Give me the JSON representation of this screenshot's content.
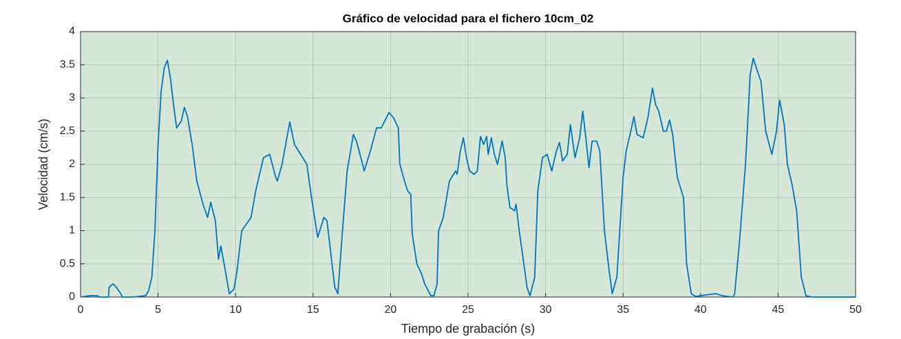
{
  "chart_data": {
    "type": "line",
    "title": "Gráfico de velocidad para el fichero 10cm_02",
    "xlabel": "Tiempo de grabación (s)",
    "ylabel": "Velocidad (cm/s)",
    "xlim": [
      0,
      50
    ],
    "ylim": [
      0,
      4
    ],
    "xticks": [
      0,
      5,
      10,
      15,
      20,
      25,
      30,
      35,
      40,
      45,
      50
    ],
    "yticks": [
      0,
      0.5,
      1,
      1.5,
      2,
      2.5,
      3,
      3.5,
      4
    ],
    "grid": true,
    "background": "#d5e8d7",
    "x": [
      0,
      0.6,
      1.1,
      1.2,
      1.8,
      1.85,
      2.1,
      2.3,
      2.6,
      2.7,
      3.4,
      4.2,
      4.4,
      4.6,
      4.8,
      5.0,
      5.2,
      5.4,
      5.6,
      5.8,
      6.0,
      6.2,
      6.5,
      6.7,
      6.9,
      7.2,
      7.5,
      7.9,
      8.2,
      8.4,
      8.7,
      8.9,
      9.05,
      9.3,
      9.6,
      9.9,
      10.1,
      10.4,
      10.7,
      11.0,
      11.3,
      11.8,
      12.2,
      12.6,
      12.7,
      13.0,
      13.5,
      13.8,
      14.2,
      14.6,
      14.9,
      15.3,
      15.7,
      15.9,
      16.2,
      16.4,
      16.6,
      16.9,
      17.2,
      17.6,
      17.8,
      18.2,
      18.3,
      18.7,
      19.1,
      19.4,
      19.9,
      20.2,
      20.5,
      20.6,
      20.9,
      21.1,
      21.3,
      21.4,
      21.7,
      22.0,
      22.2,
      22.6,
      22.8,
      23.0,
      23.1,
      23.4,
      23.8,
      24.2,
      24.3,
      24.5,
      24.7,
      24.9,
      25.1,
      25.4,
      25.6,
      25.8,
      26.0,
      26.2,
      26.3,
      26.5,
      26.7,
      26.9,
      27.2,
      27.4,
      27.5,
      27.7,
      28.0,
      28.1,
      28.3,
      28.6,
      28.8,
      29.0,
      29.3,
      29.5,
      29.8,
      30.1,
      30.4,
      30.7,
      30.9,
      31.1,
      31.4,
      31.6,
      31.9,
      32.2,
      32.4,
      32.6,
      32.8,
      33.0,
      33.3,
      33.5,
      33.8,
      34.1,
      34.3,
      34.6,
      35.0,
      35.2,
      35.5,
      35.7,
      35.9,
      36.3,
      36.6,
      36.9,
      37.1,
      37.3,
      37.6,
      37.8,
      38.0,
      38.2,
      38.5,
      38.9,
      39.1,
      39.4,
      39.7,
      40.6,
      41.0,
      41.4,
      42.1,
      42.2,
      42.5,
      42.9,
      43.1,
      43.2,
      43.4,
      43.6,
      43.9,
      44.2,
      44.6,
      44.9,
      45.1,
      45.4,
      45.6,
      45.9,
      46.2,
      46.5,
      46.8,
      47.2,
      50
    ],
    "series": [
      {
        "name": "Velocidad",
        "color": "#0072bd",
        "values": [
          0,
          0.02,
          0.02,
          0,
          0,
          0.15,
          0.2,
          0.15,
          0.05,
          0,
          0,
          0.02,
          0.1,
          0.3,
          1.0,
          2.3,
          3.1,
          3.45,
          3.57,
          3.3,
          2.9,
          2.55,
          2.65,
          2.86,
          2.72,
          2.3,
          1.75,
          1.4,
          1.2,
          1.43,
          1.15,
          0.57,
          0.77,
          0.45,
          0.05,
          0.12,
          0.4,
          1.0,
          1.1,
          1.2,
          1.6,
          2.1,
          2.15,
          1.8,
          1.75,
          2.0,
          2.64,
          2.3,
          2.15,
          2.0,
          1.5,
          0.9,
          1.2,
          1.15,
          0.55,
          0.15,
          0.05,
          1.0,
          1.9,
          2.45,
          2.35,
          2.0,
          1.9,
          2.2,
          2.55,
          2.55,
          2.78,
          2.7,
          2.55,
          2.0,
          1.75,
          1.6,
          1.55,
          0.95,
          0.5,
          0.35,
          0.2,
          0.02,
          0.02,
          0.2,
          1.0,
          1.2,
          1.75,
          1.9,
          1.85,
          2.2,
          2.4,
          2.1,
          1.9,
          1.85,
          1.9,
          2.42,
          2.3,
          2.42,
          2.15,
          2.4,
          2.15,
          2.0,
          2.35,
          2.1,
          1.7,
          1.35,
          1.3,
          1.4,
          1.0,
          0.5,
          0.15,
          0.02,
          0.3,
          1.6,
          2.1,
          2.15,
          1.9,
          2.2,
          2.33,
          2.05,
          2.15,
          2.6,
          2.1,
          2.4,
          2.8,
          2.4,
          1.95,
          2.35,
          2.35,
          2.2,
          1.0,
          0.4,
          0.05,
          0.3,
          1.8,
          2.2,
          2.5,
          2.72,
          2.45,
          2.4,
          2.7,
          3.15,
          2.9,
          2.8,
          2.5,
          2.5,
          2.67,
          2.45,
          1.8,
          1.5,
          0.5,
          0.05,
          0.01,
          0.04,
          0.05,
          0.02,
          0,
          0.05,
          0.8,
          2.0,
          2.9,
          3.35,
          3.6,
          3.45,
          3.25,
          2.5,
          2.15,
          2.5,
          2.97,
          2.6,
          2.0,
          1.7,
          1.3,
          0.3,
          0.02,
          0,
          0
        ]
      }
    ]
  }
}
